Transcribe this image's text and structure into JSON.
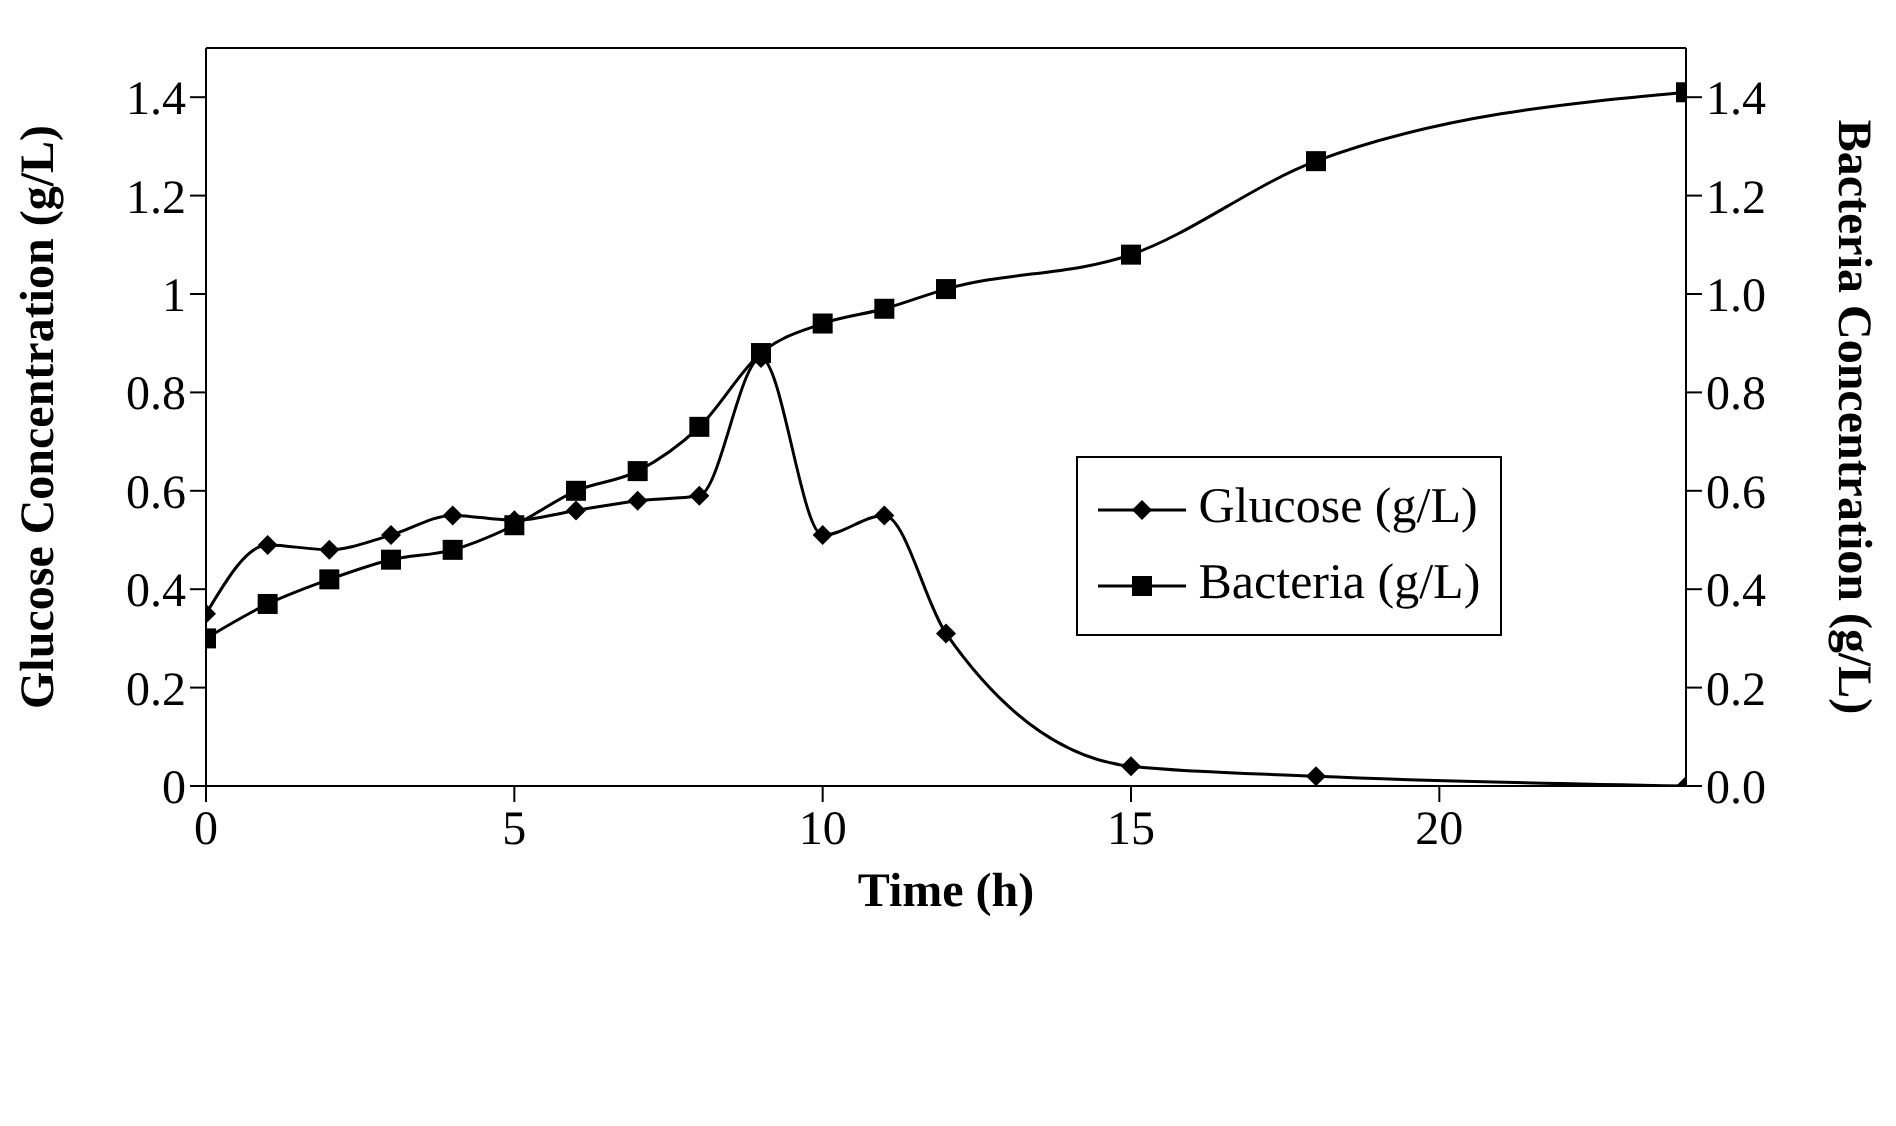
{
  "chart_data": {
    "type": "line",
    "xlabel": "Time (h)",
    "ylabel": "Glucose Concentration (g/L)",
    "y2label": "Bacteria Concentration (g/L)",
    "x": [
      0,
      1,
      2,
      3,
      4,
      5,
      6,
      7,
      8,
      9,
      10,
      11,
      12,
      15,
      18,
      24
    ],
    "series": [
      {
        "name": "Glucose (g/L)",
        "color": "#000000",
        "marker": "diamond",
        "values": [
          0.35,
          0.49,
          0.48,
          0.51,
          0.55,
          0.54,
          0.56,
          0.58,
          0.59,
          0.87,
          0.51,
          0.55,
          0.31,
          0.04,
          0.02,
          0.0
        ]
      },
      {
        "name": "Bacteria (g/L)",
        "color": "#000000",
        "marker": "square",
        "axis": "y2",
        "values": [
          0.3,
          0.37,
          0.42,
          0.46,
          0.48,
          0.53,
          0.6,
          0.64,
          0.73,
          0.88,
          0.94,
          0.97,
          1.01,
          1.08,
          1.27,
          1.41
        ]
      }
    ],
    "xlim": [
      0,
      24
    ],
    "xticks": [
      0,
      5,
      10,
      15,
      20
    ],
    "ylim": [
      0,
      1.5
    ],
    "yticks": [
      0,
      0.2,
      0.4,
      0.6,
      0.8,
      1,
      1.2,
      1.4
    ],
    "y2lim": [
      0,
      1.5
    ],
    "y2ticks": [
      {
        "value": 0,
        "label": "0.0"
      },
      0.2,
      0.4,
      0.6,
      0.8,
      {
        "value": 1,
        "label": "1.0"
      },
      1.2,
      1.4
    ],
    "grid": false,
    "legend": "right",
    "line_style": "solid"
  }
}
